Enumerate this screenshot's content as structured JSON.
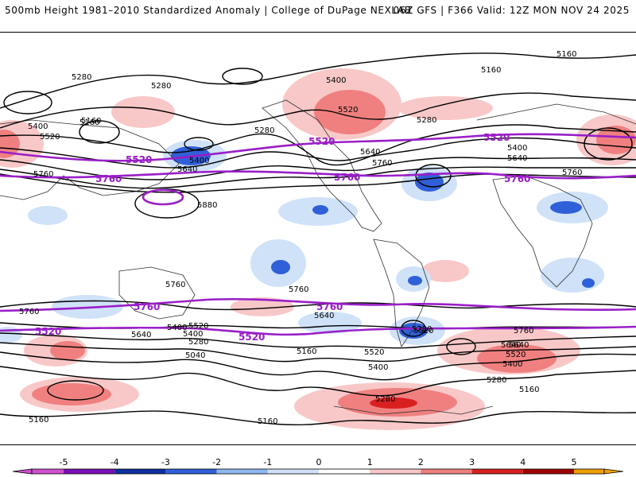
{
  "header": {
    "left_title": "500mb Height 1981–2010 Standardized Anomaly | College of DuPage NEXLAB",
    "right_title": "06Z GFS | F366 Valid: 12Z MON NOV 24 2025"
  },
  "legend": {
    "tick_labels": [
      "-5",
      "-4",
      "-3",
      "-2",
      "-1",
      "0",
      "1",
      "2",
      "3",
      "4",
      "5"
    ],
    "colors": [
      "#d050d0",
      "#7a10b8",
      "#1030a0",
      "#3060d8",
      "#90b8f0",
      "#cfe2f8",
      "#ffffff",
      "#f8c8c8",
      "#f08080",
      "#d82020",
      "#a00000",
      "#f0a000"
    ]
  },
  "contour_labels": {
    "black": [
      "5160",
      "5280",
      "5160",
      "5400",
      "5160",
      "5520",
      "5280",
      "5400",
      "5640",
      "5760",
      "5880",
      "5280",
      "5400",
      "5640",
      "5760",
      "5160",
      "5280",
      "5520",
      "5400",
      "5640",
      "5760",
      "5760",
      "5640",
      "5520",
      "5400",
      "5280",
      "5040",
      "5760",
      "5640",
      "5280",
      "5520",
      "5160",
      "5400",
      "5640",
      "5760",
      "5640",
      "5520",
      "5400",
      "5280",
      "5160",
      "5160",
      "5160",
      "5280",
      "5520",
      "5400",
      "5760"
    ],
    "purple": [
      "5520",
      "5760",
      "5520",
      "5760",
      "5520",
      "5760",
      "5760",
      "5760",
      "5520",
      "5520"
    ]
  },
  "colors": {
    "purple_contour": "#9a1ec8",
    "black_contour": "#000000",
    "coastline": "#303030"
  }
}
